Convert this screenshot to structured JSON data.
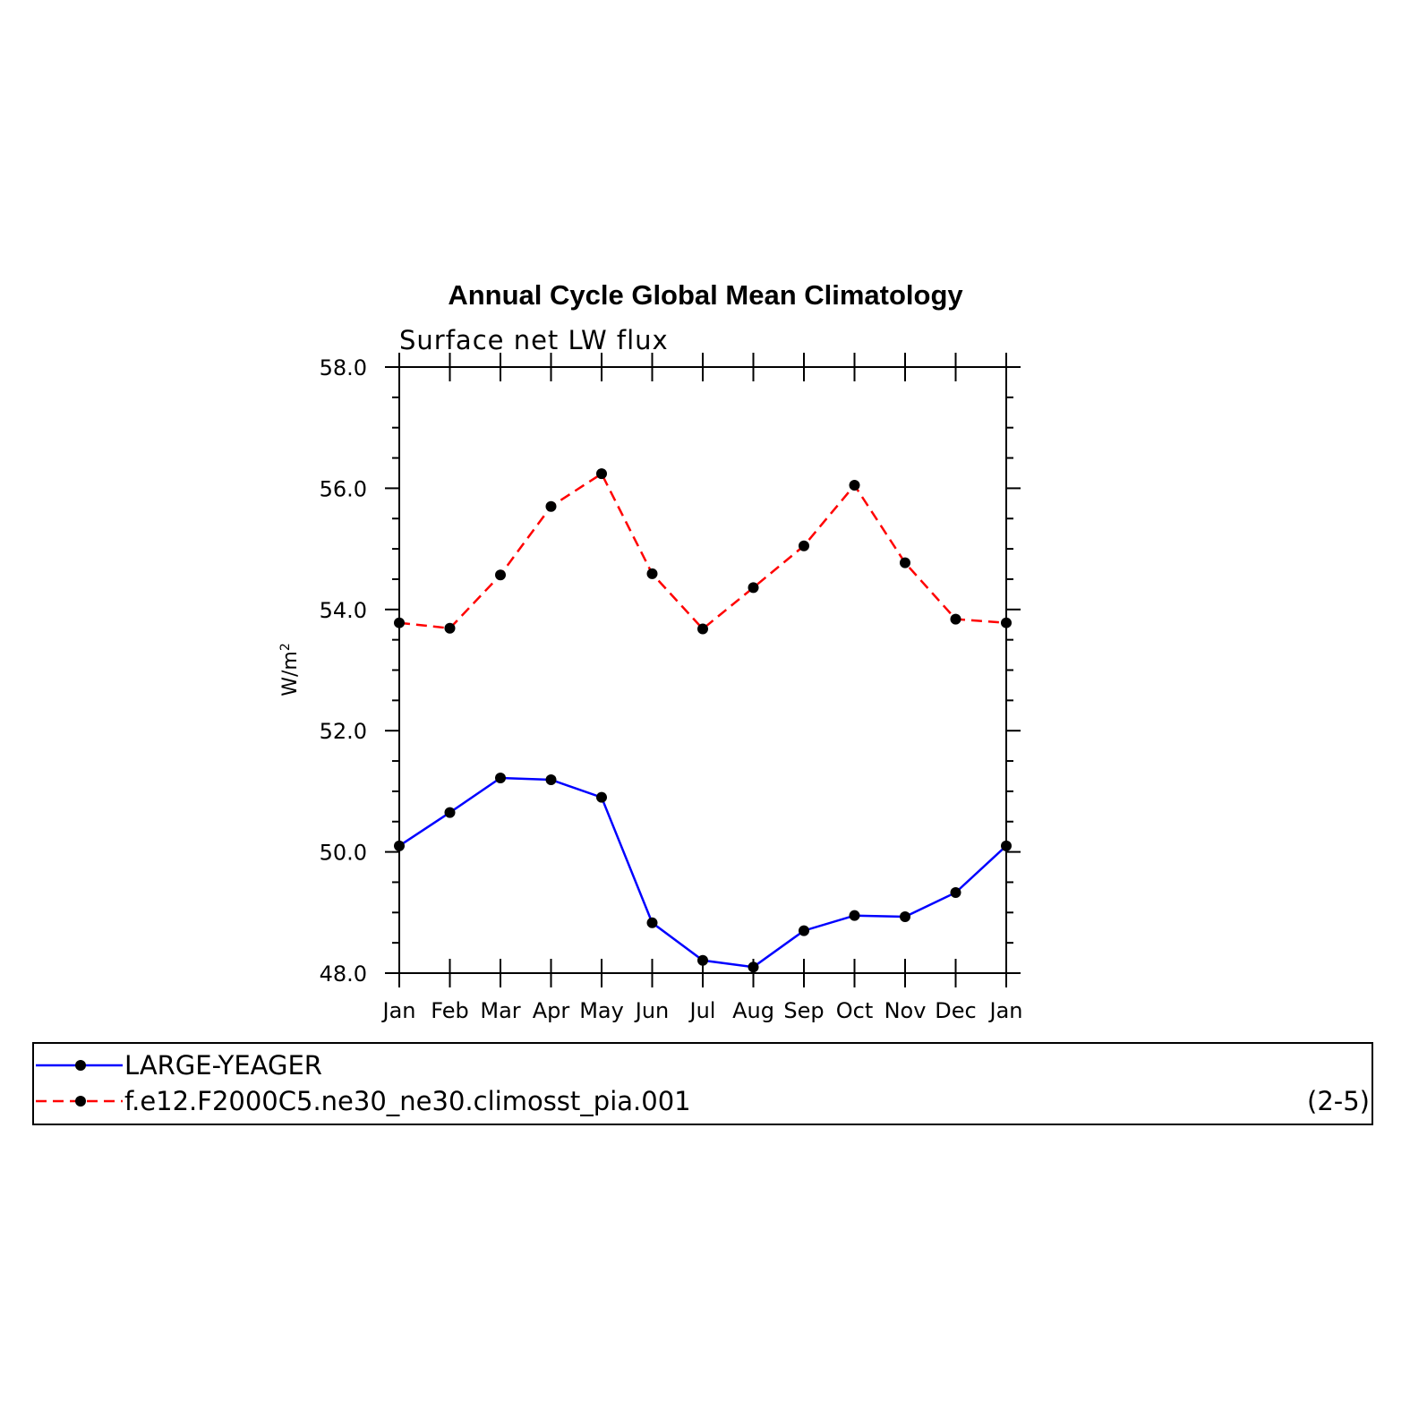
{
  "chart_data": {
    "type": "line",
    "title": "Annual Cycle Global Mean Climatology",
    "subtitle": "Surface net LW flux",
    "ylabel": "W/m",
    "ylabel_superscript": "2",
    "xlabel": "",
    "categories": [
      "Jan",
      "Feb",
      "Mar",
      "Apr",
      "May",
      "Jun",
      "Jul",
      "Aug",
      "Sep",
      "Oct",
      "Nov",
      "Dec",
      "Jan"
    ],
    "ylim": [
      48.0,
      58.0
    ],
    "yticks": [
      "48.0",
      "50.0",
      "52.0",
      "54.0",
      "56.0",
      "58.0"
    ],
    "ytick_values": [
      48,
      50,
      52,
      54,
      56,
      58
    ],
    "yminor_step": 0.5,
    "grid": false,
    "legend_placement": "bottom",
    "panel_label": "(2-5)",
    "series": [
      {
        "name": "LARGE-YEAGER",
        "color": "#0000ff",
        "dash": "solid",
        "marker": "dot",
        "values": [
          50.1,
          50.65,
          51.22,
          51.19,
          50.9,
          48.83,
          48.21,
          48.1,
          48.7,
          48.95,
          48.93,
          49.33,
          50.1
        ]
      },
      {
        "name": "f.e12.F2000C5.ne30_ne30.climosst_pia.001",
        "color": "#ff0000",
        "dash": "dashed",
        "marker": "dot",
        "values": [
          53.78,
          53.69,
          54.57,
          55.7,
          56.24,
          54.59,
          53.68,
          54.36,
          55.05,
          56.05,
          54.77,
          53.84,
          53.78
        ]
      }
    ]
  }
}
